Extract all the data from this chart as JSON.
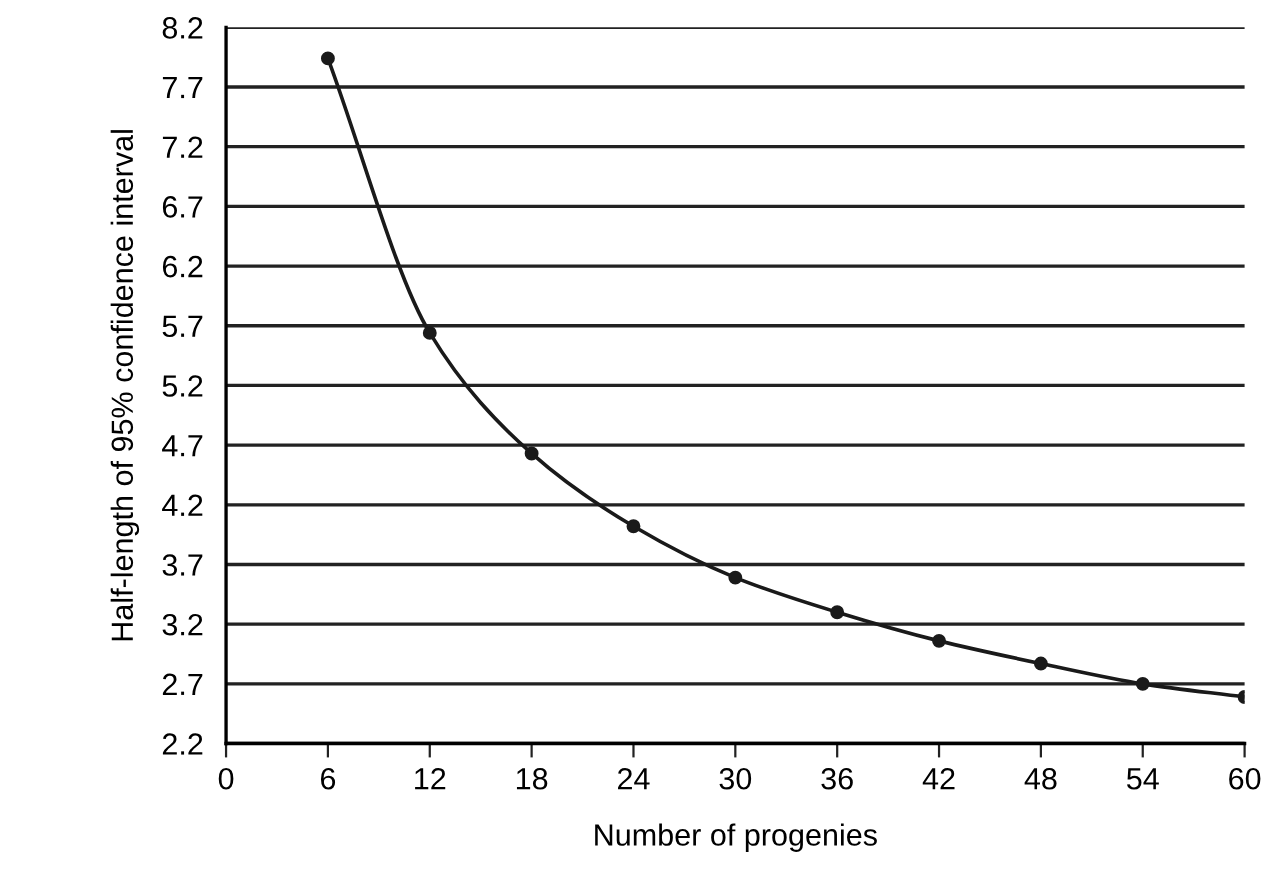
{
  "chart_data": {
    "type": "line",
    "xlabel": "Number of progenies",
    "ylabel": "Half-length of 95% confidence interval",
    "x": [
      6,
      12,
      18,
      24,
      30,
      36,
      42,
      48,
      54,
      60
    ],
    "series": [
      {
        "color": "#1a1a1a",
        "values": [
          7.94,
          5.64,
          4.63,
          4.02,
          3.59,
          3.3,
          3.06,
          2.87,
          2.7,
          2.59
        ]
      }
    ],
    "xlim": [
      0,
      60
    ],
    "xticks": [
      0,
      6,
      12,
      18,
      24,
      30,
      36,
      42,
      48,
      54,
      60
    ],
    "ylim": [
      2.2,
      8.2
    ],
    "yticks": [
      2.2,
      2.7,
      3.2,
      3.7,
      4.2,
      4.7,
      5.2,
      5.7,
      6.2,
      6.7,
      7.2,
      7.7,
      8.2
    ],
    "grid": "y",
    "marker": "circle",
    "line_style": "solid",
    "legend": false
  }
}
